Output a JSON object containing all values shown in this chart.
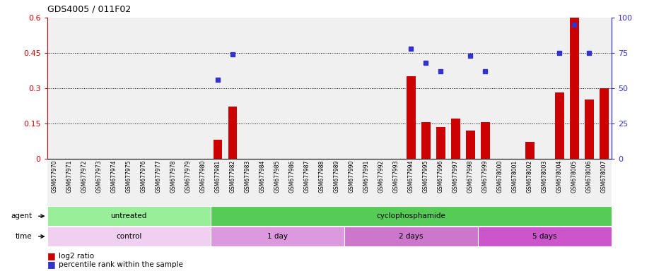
{
  "title": "GDS4005 / 011F02",
  "samples": [
    "GSM677970",
    "GSM677971",
    "GSM677972",
    "GSM677973",
    "GSM677974",
    "GSM677975",
    "GSM677976",
    "GSM677977",
    "GSM677978",
    "GSM677979",
    "GSM677980",
    "GSM677981",
    "GSM677982",
    "GSM677983",
    "GSM677984",
    "GSM677985",
    "GSM677986",
    "GSM677987",
    "GSM677988",
    "GSM677989",
    "GSM677990",
    "GSM677991",
    "GSM677992",
    "GSM677993",
    "GSM677994",
    "GSM677995",
    "GSM677996",
    "GSM677997",
    "GSM677998",
    "GSM677999",
    "GSM678000",
    "GSM678001",
    "GSM678002",
    "GSM678003",
    "GSM678004",
    "GSM678005",
    "GSM678006",
    "GSM678007"
  ],
  "log2_ratio": [
    0,
    0,
    0,
    0,
    0,
    0,
    0,
    0,
    0,
    0,
    0,
    0.08,
    0.22,
    0,
    0,
    0,
    0,
    0,
    0,
    0,
    0,
    0,
    0,
    0,
    0.35,
    0.155,
    0.135,
    0.17,
    0.12,
    0.155,
    0,
    0,
    0.07,
    0,
    0.28,
    0.6,
    0.25,
    0.3
  ],
  "percentile_pct": [
    null,
    null,
    null,
    null,
    null,
    null,
    null,
    null,
    null,
    null,
    null,
    56,
    74,
    null,
    null,
    null,
    null,
    null,
    null,
    null,
    null,
    null,
    null,
    null,
    78,
    68,
    62,
    null,
    73,
    62,
    null,
    null,
    null,
    null,
    75,
    95,
    75,
    null
  ],
  "ylim_left": [
    0,
    0.6
  ],
  "ylim_right": [
    0,
    100
  ],
  "yticks_left": [
    0,
    0.15,
    0.3,
    0.45,
    0.6
  ],
  "yticks_right": [
    0,
    25,
    50,
    75,
    100
  ],
  "ytick_labels_left": [
    "0",
    "0.15",
    "0.3",
    "0.45",
    "0.6"
  ],
  "ytick_labels_right": [
    "0",
    "25",
    "50",
    "75",
    "100"
  ],
  "hlines": [
    0.15,
    0.3,
    0.45
  ],
  "bar_color": "#cc0000",
  "dot_color": "#3333cc",
  "bg_color": "#f0f0f0",
  "agent_groups": [
    {
      "label": "untreated",
      "start": 0,
      "end": 10,
      "color": "#99ee99"
    },
    {
      "label": "cyclophosphamide",
      "start": 11,
      "end": 37,
      "color": "#55cc55"
    }
  ],
  "time_groups": [
    {
      "label": "control",
      "start": 0,
      "end": 10,
      "color": "#f0d0f0"
    },
    {
      "label": "1 day",
      "start": 11,
      "end": 19,
      "color": "#dd99dd"
    },
    {
      "label": "2 days",
      "start": 20,
      "end": 28,
      "color": "#cc77cc"
    },
    {
      "label": "5 days",
      "start": 29,
      "end": 37,
      "color": "#cc55cc"
    }
  ]
}
